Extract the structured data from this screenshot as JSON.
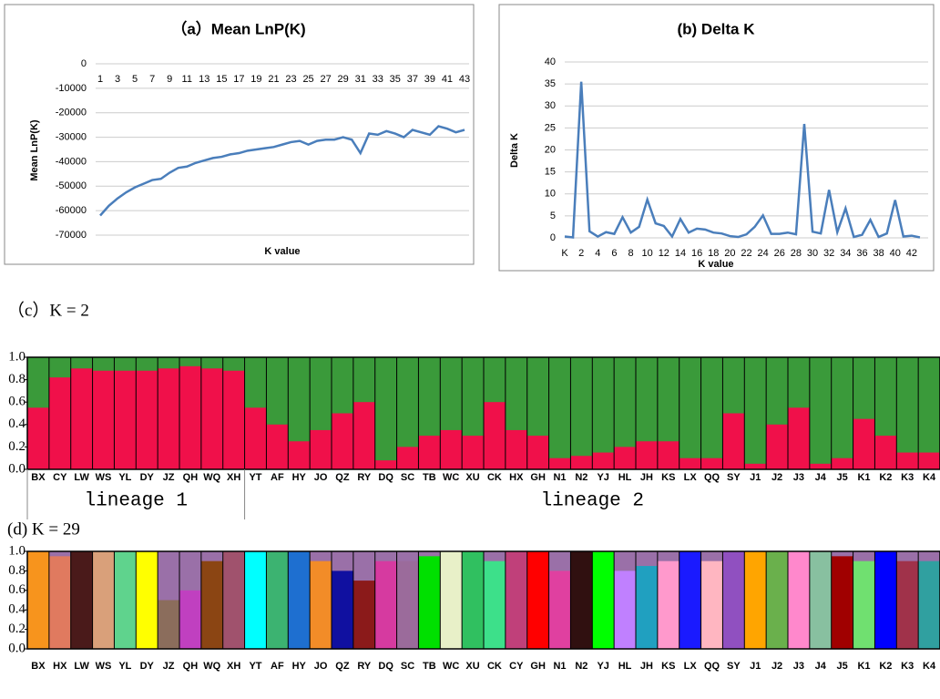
{
  "chart_data": [
    {
      "type": "line",
      "title": "（a）Mean LnP(K)",
      "xlabel": "K value",
      "ylabel": "Mean LnP(K)",
      "x": [
        1,
        2,
        3,
        4,
        5,
        6,
        7,
        8,
        9,
        10,
        11,
        12,
        13,
        14,
        15,
        16,
        17,
        18,
        19,
        20,
        21,
        22,
        23,
        24,
        25,
        26,
        27,
        28,
        29,
        30,
        31,
        32,
        33,
        34,
        35,
        36,
        37,
        38,
        39,
        40,
        41,
        42,
        43
      ],
      "values": [
        -62000,
        -58000,
        -55000,
        -52500,
        -50500,
        -49000,
        -47500,
        -47000,
        -44500,
        -42500,
        -42000,
        -40500,
        -39500,
        -38500,
        -38000,
        -37000,
        -36500,
        -35500,
        -35000,
        -34500,
        -34000,
        -33000,
        -32000,
        -31500,
        -33000,
        -31500,
        -31000,
        -31000,
        -30000,
        -31000,
        -36500,
        -28500,
        -29000,
        -27500,
        -28500,
        -30000,
        -27000,
        -28000,
        -29000,
        -25500,
        -26500,
        -28000,
        -27000
      ],
      "xlim": [
        1,
        43
      ],
      "xticks": [
        1,
        3,
        5,
        7,
        9,
        11,
        13,
        15,
        17,
        19,
        21,
        23,
        25,
        27,
        29,
        31,
        33,
        35,
        37,
        39,
        41,
        43
      ],
      "ylim": [
        -70000,
        0
      ],
      "yticks": [
        0,
        -10000,
        -20000,
        -30000,
        -40000,
        -50000,
        -60000,
        -70000
      ],
      "color": "#4a7ebb",
      "grid": true
    },
    {
      "type": "line",
      "title": "(b) Delta K",
      "xlabel": "K value",
      "ylabel": "Delta K",
      "categories": [
        "K",
        null,
        "2",
        null,
        "4",
        null,
        "6",
        null,
        "8",
        null,
        "10",
        null,
        "12",
        null,
        "14",
        null,
        "16",
        null,
        "18",
        null,
        "20",
        null,
        "22",
        null,
        "24",
        null,
        "26",
        null,
        "28",
        null,
        "30",
        null,
        "32",
        null,
        "34",
        null,
        "36",
        null,
        "38",
        null,
        "40",
        null,
        "42",
        null
      ],
      "values": [
        0.3,
        0.1,
        35.5,
        1.5,
        0.3,
        1.3,
        0.9,
        4.7,
        1.2,
        2.5,
        8.7,
        3.3,
        2.7,
        0.3,
        4.3,
        1.2,
        2.1,
        1.9,
        1.2,
        1,
        0.4,
        0.2,
        0.8,
        2.5,
        5.1,
        0.9,
        0.9,
        1.2,
        0.8,
        25.9,
        1.4,
        1,
        10.9,
        1.3,
        6.7,
        0.2,
        0.7,
        4.1,
        0.2,
        1,
        8.6,
        0.3,
        0.5,
        0.1
      ],
      "ylim": [
        0,
        40
      ],
      "yticks": [
        0,
        5,
        10,
        15,
        20,
        25,
        30,
        35,
        40
      ],
      "color": "#4a7ebb",
      "grid": true
    },
    {
      "type": "structure",
      "title": "（c）K = 2",
      "categories": [
        "BX",
        "CY",
        "LW",
        "WS",
        "YL",
        "DY",
        "JZ",
        "QH",
        "WQ",
        "XH",
        "YT",
        "AF",
        "HY",
        "JO",
        "QZ",
        "RY",
        "DQ",
        "SC",
        "TB",
        "WC",
        "XU",
        "CK",
        "HX",
        "GH",
        "N1",
        "N2",
        "YJ",
        "HL",
        "JH",
        "KS",
        "LX",
        "QQ",
        "SY",
        "J1",
        "J2",
        "J3",
        "J4",
        "J5",
        "K1",
        "K2",
        "K3",
        "K4"
      ],
      "values": [
        0.55,
        0.82,
        0.9,
        0.88,
        0.88,
        0.88,
        0.9,
        0.92,
        0.9,
        0.88,
        0.55,
        0.4,
        0.25,
        0.35,
        0.5,
        0.6,
        0.08,
        0.2,
        0.3,
        0.35,
        0.3,
        0.6,
        0.35,
        0.3,
        0.1,
        0.12,
        0.15,
        0.2,
        0.25,
        0.25,
        0.1,
        0.1,
        0.5,
        0.05,
        0.4,
        0.55,
        0.05,
        0.1,
        0.45,
        0.3,
        0.15,
        0.15
      ],
      "color": "#f0104a",
      "background_color": "#3a9a3a",
      "ylim": [
        0,
        1
      ],
      "yticks": [
        {
          "value": 0,
          "label": "0.0"
        },
        0.2,
        0.4,
        0.6,
        0.8,
        {
          "value": 1,
          "label": "1.0"
        }
      ],
      "groups": [
        "lineage 1",
        "lineage 2"
      ]
    },
    {
      "type": "structure",
      "title": "(d) K = 29",
      "categories": [
        "BX",
        "HX",
        "LW",
        "WS",
        "YL",
        "DY",
        "JZ",
        "QH",
        "WQ",
        "XH",
        "YT",
        "AF",
        "HY",
        "JO",
        "QZ",
        "RY",
        "DQ",
        "SC",
        "TB",
        "WC",
        "XU",
        "CK",
        "CY",
        "GH",
        "N1",
        "N2",
        "YJ",
        "HL",
        "JH",
        "KS",
        "LX",
        "QQ",
        "SY",
        "J1",
        "J2",
        "J3",
        "J4",
        "J5",
        "K1",
        "K2",
        "K3",
        "K4"
      ],
      "values": [
        1,
        0.95,
        1,
        1,
        1,
        1,
        0.5,
        0.6,
        0.9,
        1,
        1,
        1,
        1,
        0.9,
        0.8,
        0.7,
        0.9,
        0.9,
        0.95,
        1,
        1,
        0.9,
        1,
        1,
        0.8,
        1,
        1,
        0.8,
        0.85,
        0.9,
        1,
        0.9,
        1,
        1,
        1,
        1,
        1,
        0.95,
        0.9,
        1,
        0.9,
        0.9
      ],
      "colors": [
        "#f7941d",
        "#e07a5f",
        "#4a1a1a",
        "#d9a07a",
        "#5fd38d",
        "#ffff00",
        "#8b6d5c",
        "#c040c0",
        "#8b4513",
        "#a0526d",
        "#00ffff",
        "#3cb371",
        "#1e6fd0",
        "#f28c28",
        "#1010a0",
        "#8b1a1a",
        "#d63aa0",
        "#9b6b9b",
        "#00e000",
        "#e8f0c8",
        "#30c060",
        "#3de08a",
        "#c0407a",
        "#ff0000",
        "#e040a0",
        "#301010",
        "#00ff00",
        "#c080ff",
        "#20a0c0",
        "#ff99cc",
        "#1a1aff",
        "#ffb6c1",
        "#9050c0",
        "#ffa500",
        "#6ab04c",
        "#ff88cc",
        "#88c0a0",
        "#a00000",
        "#70e070",
        "#0000ff",
        "#a0324a",
        "#30a0a0"
      ],
      "background_color": "#9a70a8",
      "ylim": [
        0,
        1
      ],
      "yticks": [
        {
          "value": 0,
          "label": "0.0"
        },
        0.2,
        0.4,
        0.6,
        0.8,
        {
          "value": 1,
          "label": "1.0"
        }
      ]
    }
  ]
}
